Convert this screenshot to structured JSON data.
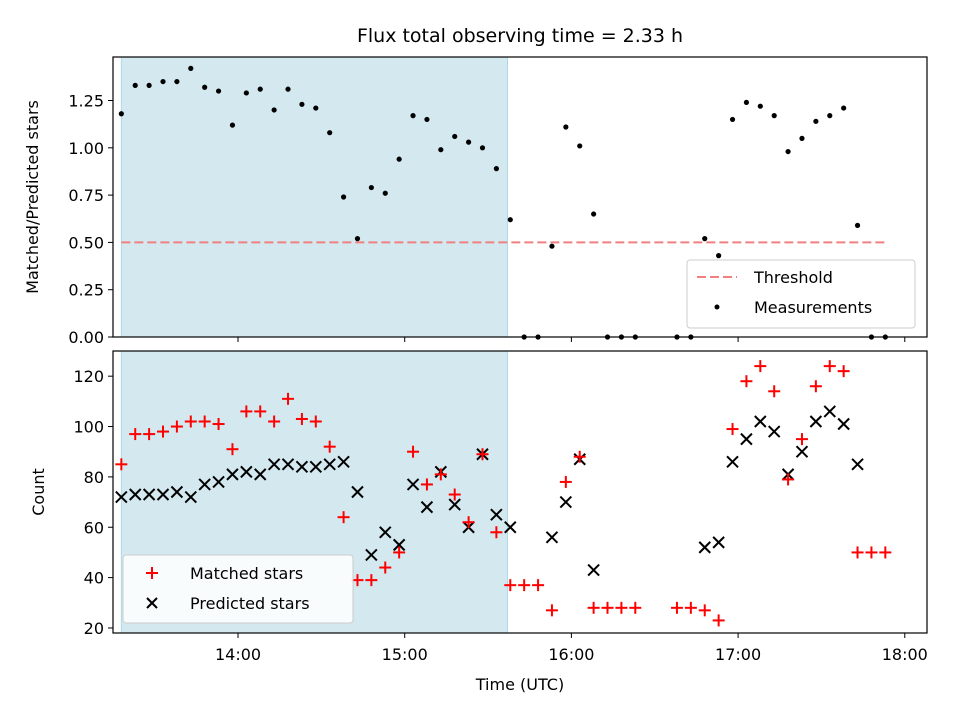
{
  "chart_data": [
    {
      "type": "scatter",
      "title": "Flux total observing time = 2.33 h",
      "ylabel": "Matched/Predicted stars",
      "xlabel": "",
      "xlim": [
        "13:15",
        "18:08"
      ],
      "ylim": [
        0.0,
        1.48
      ],
      "xticks": [
        {
          "t": "14:00",
          "label": ""
        },
        {
          "t": "15:00",
          "label": ""
        },
        {
          "t": "16:00",
          "label": ""
        },
        {
          "t": "17:00",
          "label": ""
        },
        {
          "t": "18:00",
          "label": ""
        }
      ],
      "yticks": [
        {
          "v": 0.0,
          "label": "0.00"
        },
        {
          "v": 0.25,
          "label": "0.25"
        },
        {
          "v": 0.5,
          "label": "0.50"
        },
        {
          "v": 0.75,
          "label": "0.75"
        },
        {
          "v": 1.0,
          "label": "1.00"
        },
        {
          "v": 1.25,
          "label": "1.25"
        }
      ],
      "shaded_region": {
        "start": "13:18",
        "end": "15:37",
        "color": "#d3e9ef"
      },
      "threshold": {
        "value": 0.5,
        "start": "13:18",
        "end": "17:53",
        "color": "#f08080",
        "style": "dashed"
      },
      "series": [
        {
          "name": "Measurements",
          "marker": "dot",
          "color": "#000000",
          "x": [
            "13:18",
            "13:23",
            "13:28",
            "13:33",
            "13:38",
            "13:43",
            "13:48",
            "13:53",
            "13:58",
            "14:03",
            "14:08",
            "14:13",
            "14:18",
            "14:23",
            "14:28",
            "14:33",
            "14:38",
            "14:43",
            "14:48",
            "14:53",
            "14:58",
            "15:03",
            "15:08",
            "15:13",
            "15:18",
            "15:23",
            "15:28",
            "15:33",
            "15:38",
            "15:43",
            "15:48",
            "15:53",
            "15:58",
            "16:03",
            "16:08",
            "16:13",
            "16:18",
            "16:23",
            "16:38",
            "16:43",
            "16:48",
            "16:53",
            "16:58",
            "17:03",
            "17:08",
            "17:13",
            "17:18",
            "17:23",
            "17:28",
            "17:33",
            "17:38",
            "17:43",
            "17:48",
            "17:53"
          ],
          "y": [
            1.18,
            1.33,
            1.33,
            1.35,
            1.35,
            1.42,
            1.32,
            1.3,
            1.12,
            1.29,
            1.31,
            1.2,
            1.31,
            1.23,
            1.21,
            1.08,
            0.74,
            0.52,
            0.79,
            0.76,
            0.94,
            1.17,
            1.15,
            0.99,
            1.06,
            1.03,
            1.0,
            0.89,
            0.62,
            0.0,
            0.0,
            0.48,
            1.11,
            1.01,
            0.65,
            0.0,
            0.0,
            0.0,
            0.0,
            0.0,
            0.52,
            0.43,
            1.15,
            1.24,
            1.22,
            1.17,
            0.98,
            1.05,
            1.14,
            1.17,
            1.21,
            0.59,
            0.0,
            0.0
          ]
        },
        {
          "name": "Threshold",
          "marker": "dashed-line",
          "color": "#f08080"
        }
      ],
      "legend": {
        "placement": "lower-right",
        "entries": [
          "Threshold",
          "Measurements"
        ]
      }
    },
    {
      "type": "scatter",
      "title": "",
      "ylabel": "Count",
      "xlabel": "Time (UTC)",
      "xlim": [
        "13:15",
        "18:08"
      ],
      "ylim": [
        18.0,
        130.0
      ],
      "xticks": [
        {
          "t": "14:00",
          "label": "14:00"
        },
        {
          "t": "15:00",
          "label": "15:00"
        },
        {
          "t": "16:00",
          "label": "16:00"
        },
        {
          "t": "17:00",
          "label": "17:00"
        },
        {
          "t": "18:00",
          "label": "18:00"
        }
      ],
      "yticks": [
        {
          "v": 20,
          "label": "20"
        },
        {
          "v": 40,
          "label": "40"
        },
        {
          "v": 60,
          "label": "60"
        },
        {
          "v": 80,
          "label": "80"
        },
        {
          "v": 100,
          "label": "100"
        },
        {
          "v": 120,
          "label": "120"
        }
      ],
      "shaded_region": {
        "start": "13:18",
        "end": "15:37",
        "color": "#d3e9ef"
      },
      "series": [
        {
          "name": "Matched stars",
          "marker": "plus",
          "color": "#ff0000",
          "x": [
            "13:18",
            "13:23",
            "13:28",
            "13:33",
            "13:38",
            "13:43",
            "13:48",
            "13:53",
            "13:58",
            "14:03",
            "14:08",
            "14:13",
            "14:18",
            "14:23",
            "14:28",
            "14:33",
            "14:38",
            "14:43",
            "14:48",
            "14:53",
            "14:58",
            "15:03",
            "15:08",
            "15:13",
            "15:18",
            "15:23",
            "15:28",
            "15:33",
            "15:38",
            "15:43",
            "15:48",
            "15:53",
            "15:58",
            "16:03",
            "16:08",
            "16:13",
            "16:18",
            "16:23",
            "16:38",
            "16:43",
            "16:48",
            "16:53",
            "16:58",
            "17:03",
            "17:08",
            "17:13",
            "17:18",
            "17:23",
            "17:28",
            "17:33",
            "17:38",
            "17:43",
            "17:48",
            "17:53"
          ],
          "y": [
            85,
            97,
            97,
            98,
            100,
            102,
            102,
            101,
            91,
            106,
            106,
            102,
            111,
            103,
            102,
            92,
            64,
            39,
            39,
            44,
            50,
            90,
            77,
            81,
            73,
            62,
            89,
            58,
            37,
            37,
            37,
            27,
            78,
            88,
            28,
            28,
            28,
            28,
            28,
            28,
            27,
            23,
            99,
            118,
            124,
            114,
            79,
            95,
            116,
            124,
            122,
            50,
            50,
            50
          ]
        },
        {
          "name": "Predicted stars",
          "marker": "x",
          "color": "#000000",
          "x": [
            "13:18",
            "13:23",
            "13:28",
            "13:33",
            "13:38",
            "13:43",
            "13:48",
            "13:53",
            "13:58",
            "14:03",
            "14:08",
            "14:13",
            "14:18",
            "14:23",
            "14:28",
            "14:33",
            "14:38",
            "14:43",
            "14:48",
            "14:53",
            "14:58",
            "15:03",
            "15:08",
            "15:13",
            "15:18",
            "15:23",
            "15:28",
            "15:33",
            "15:38",
            "15:53",
            "15:58",
            "16:03",
            "16:08",
            "16:48",
            "16:53",
            "16:58",
            "17:03",
            "17:08",
            "17:13",
            "17:18",
            "17:23",
            "17:28",
            "17:33",
            "17:38",
            "17:43"
          ],
          "y": [
            72,
            73,
            73,
            73,
            74,
            72,
            77,
            78,
            81,
            82,
            81,
            85,
            85,
            84,
            84,
            85,
            86,
            74,
            49,
            58,
            53,
            77,
            68,
            82,
            69,
            60,
            89,
            65,
            60,
            56,
            70,
            87,
            43,
            52,
            54,
            86,
            95,
            102,
            98,
            81,
            90,
            102,
            106,
            101,
            85
          ]
        }
      ],
      "legend": {
        "placement": "lower-left",
        "entries": [
          "Matched stars",
          "Predicted stars"
        ]
      }
    }
  ]
}
